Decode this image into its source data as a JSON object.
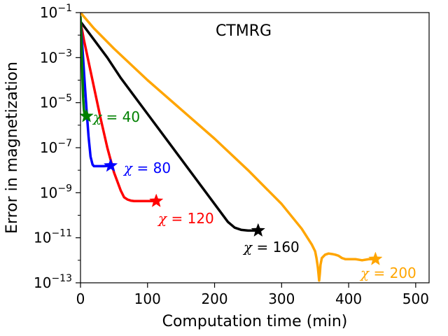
{
  "chart_data": {
    "type": "line",
    "title": "CTMRG",
    "xlabel": "Computation time (min)",
    "ylabel": "Error in magnetization",
    "xlim": [
      0,
      520
    ],
    "ylim_log10": [
      -13,
      -1
    ],
    "y_scale": "log",
    "x_ticks": [
      0,
      100,
      200,
      300,
      400,
      500
    ],
    "y_tick_exponents": [
      -1,
      -3,
      -5,
      -7,
      -9,
      -11,
      -13
    ],
    "y_tick_base": "10",
    "grid": false,
    "legend": "none",
    "series": [
      {
        "name": "χ = 40",
        "label_prefix": "χ",
        "label_value": "= 40",
        "color": "#008000",
        "x": [
          0,
          1,
          2,
          3,
          4,
          5,
          6,
          7,
          8,
          9
        ],
        "log10_y": [
          -1.2,
          -2.0,
          -3.0,
          -4.0,
          -4.8,
          -5.3,
          -5.5,
          -5.55,
          -5.57,
          -5.6
        ],
        "end_marker": [
          9,
          -5.6
        ]
      },
      {
        "name": "χ = 80",
        "label_prefix": "χ",
        "label_value": "= 80",
        "color": "#0000ff",
        "x": [
          0,
          3,
          6,
          9,
          12,
          15,
          18,
          20,
          25,
          30,
          35,
          40,
          45
        ],
        "log10_y": [
          -1.3,
          -2.6,
          -4.0,
          -5.3,
          -6.5,
          -7.4,
          -7.75,
          -7.82,
          -7.82,
          -7.82,
          -7.82,
          -7.81,
          -7.8
        ],
        "end_marker": [
          45,
          -7.8
        ]
      },
      {
        "name": "χ = 120",
        "label_prefix": "χ",
        "label_value": "= 120",
        "color": "#ff0000",
        "x": [
          0,
          5,
          10,
          20,
          30,
          40,
          50,
          60,
          65,
          70,
          75,
          80,
          90,
          100,
          113
        ],
        "log10_y": [
          -1.4,
          -2.2,
          -2.9,
          -4.3,
          -5.7,
          -7.0,
          -8.1,
          -8.9,
          -9.2,
          -9.3,
          -9.35,
          -9.37,
          -9.37,
          -9.37,
          -9.37
        ],
        "end_marker": [
          113,
          -9.37
        ]
      },
      {
        "name": "χ = 160",
        "label_prefix": "χ",
        "label_value": "= 160",
        "color": "#000000",
        "x": [
          0,
          20,
          40,
          60,
          80,
          100,
          120,
          140,
          160,
          180,
          200,
          210,
          220,
          230,
          240,
          250,
          265
        ],
        "log10_y": [
          -1.4,
          -2.2,
          -3.0,
          -3.9,
          -4.7,
          -5.5,
          -6.3,
          -7.1,
          -7.9,
          -8.7,
          -9.5,
          -9.9,
          -10.3,
          -10.55,
          -10.65,
          -10.68,
          -10.68
        ],
        "end_marker": [
          265,
          -10.68
        ]
      },
      {
        "name": "χ = 200",
        "label_prefix": "χ",
        "label_value": "= 200",
        "color": "#ffa500",
        "x": [
          0,
          20,
          50,
          100,
          150,
          200,
          250,
          300,
          330,
          345,
          350,
          352,
          354,
          355,
          356,
          357,
          358,
          360,
          365,
          370,
          375,
          380,
          385,
          390,
          395,
          400,
          410,
          420,
          430,
          440
        ],
        "log10_y": [
          -1.0,
          -1.7,
          -2.6,
          -4.0,
          -5.3,
          -6.6,
          -8.0,
          -9.5,
          -10.6,
          -11.3,
          -11.6,
          -11.9,
          -12.3,
          -12.6,
          -12.9,
          -12.6,
          -12.2,
          -11.9,
          -11.75,
          -11.7,
          -11.72,
          -11.75,
          -11.8,
          -11.9,
          -11.95,
          -11.95,
          -11.95,
          -12.0,
          -11.95,
          -11.95
        ],
        "end_marker": [
          440,
          -11.95
        ]
      }
    ]
  }
}
